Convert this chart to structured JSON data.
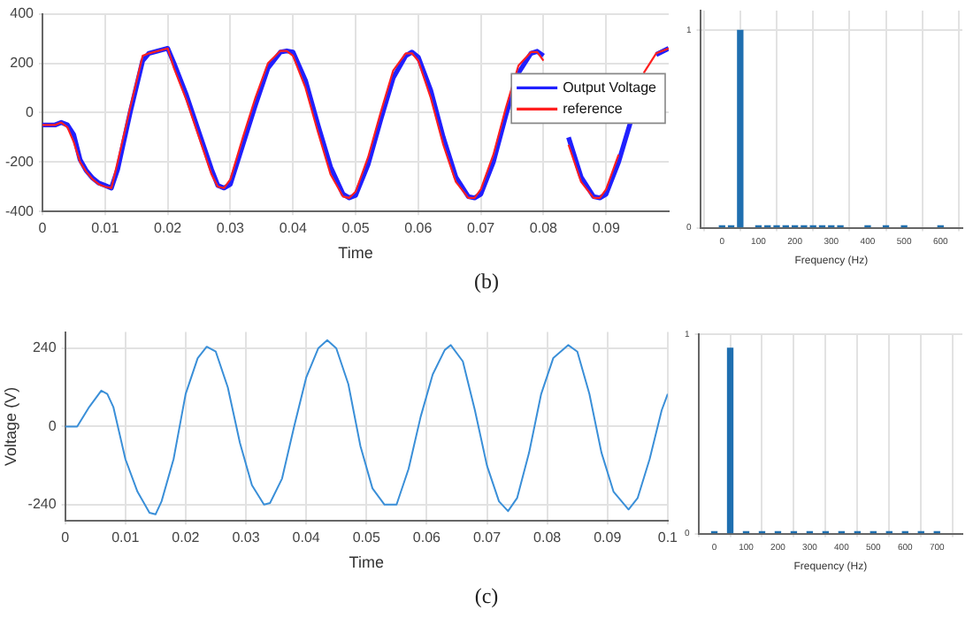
{
  "chart_data": [
    {
      "type": "line",
      "xlabel": "Time",
      "xlim": [
        0,
        0.1
      ],
      "xticks": [
        0,
        0.01,
        0.02,
        0.03,
        0.04,
        0.05,
        0.06,
        0.07,
        0.08,
        0.09
      ],
      "ylim": [
        -400,
        400
      ],
      "yticks": [
        -400,
        -200,
        0,
        200,
        400
      ],
      "grid": true,
      "legend": "right",
      "marker": "none",
      "line_style": "solid",
      "annotations": [
        "(b)"
      ],
      "x": [
        0,
        0.002,
        0.003,
        0.004,
        0.005,
        0.006,
        0.007,
        0.008,
        0.009,
        0.01,
        0.011,
        0.012,
        0.014,
        0.016,
        0.017,
        0.02,
        0.021,
        0.023,
        0.025,
        0.027,
        0.028,
        0.029,
        0.03,
        0.032,
        0.034,
        0.036,
        0.038,
        0.039,
        0.04,
        0.042,
        0.044,
        0.046,
        0.048,
        0.049,
        0.05,
        0.052,
        0.054,
        0.056,
        0.058,
        0.059,
        0.06,
        0.062,
        0.064,
        0.066,
        0.068,
        0.069,
        0.07,
        0.072,
        0.074,
        0.076,
        0.078,
        0.079,
        0.08,
        0.082,
        0.084,
        0.086,
        0.088,
        0.089,
        0.09,
        0.092,
        0.094,
        0.096,
        0.098,
        0.1
      ],
      "series": [
        {
          "name": "Output Voltage",
          "color": "#2020ff",
          "values": [
            -50,
            -50,
            -40,
            -50,
            -90,
            -190,
            -235,
            -265,
            -285,
            -295,
            -305,
            -230,
            0,
            210,
            240,
            260,
            200,
            70,
            -80,
            -230,
            -295,
            -305,
            -290,
            -130,
            30,
            180,
            245,
            250,
            245,
            130,
            -50,
            -220,
            -330,
            -345,
            -335,
            -210,
            -30,
            140,
            230,
            245,
            225,
            90,
            -100,
            -260,
            -340,
            -345,
            -330,
            -200,
            -10,
            160,
            240,
            248,
            230,
            null,
            -100,
            -260,
            -340,
            -345,
            -330,
            -200,
            -30,
            null,
            235,
            260
          ]
        },
        {
          "name": "reference",
          "color": "#ff2020",
          "values": [
            -50,
            -50,
            -40,
            -60,
            -120,
            -200,
            -240,
            -270,
            -290,
            -300,
            -305,
            -200,
            20,
            230,
            240,
            260,
            180,
            50,
            -100,
            -250,
            -300,
            -305,
            -270,
            -100,
            60,
            200,
            250,
            250,
            230,
            100,
            -80,
            -250,
            -340,
            -345,
            -320,
            -180,
            0,
            170,
            240,
            240,
            210,
            60,
            -130,
            -280,
            -345,
            -345,
            -310,
            -170,
            20,
            190,
            245,
            245,
            210,
            null,
            -130,
            -280,
            -345,
            -345,
            -310,
            -170,
            null,
            160,
            240,
            260
          ]
        }
      ]
    },
    {
      "type": "bar",
      "xlabel": "Frequency (Hz)",
      "xlim": [
        -60,
        660
      ],
      "xticks": [
        0,
        100,
        200,
        300,
        400,
        500,
        600
      ],
      "ylim": [
        0,
        1.1
      ],
      "yticks": [
        0,
        1
      ],
      "grid": true,
      "x": [
        0,
        25,
        50,
        100,
        125,
        150,
        175,
        200,
        225,
        250,
        275,
        300,
        325,
        400,
        450,
        500,
        600
      ],
      "series": [
        {
          "color": "#1f6fb0",
          "values": [
            0.01,
            0.01,
            1,
            0.01,
            0.01,
            0.01,
            0.01,
            0.01,
            0.01,
            0.01,
            0.01,
            0.01,
            0.01,
            0.01,
            0.01,
            0.01,
            0.01
          ]
        }
      ]
    },
    {
      "type": "line",
      "xlabel": "Time",
      "ylabel": "Voltage (V)",
      "xlim": [
        0,
        0.1
      ],
      "xticks": [
        0,
        0.01,
        0.02,
        0.03,
        0.04,
        0.05,
        0.06,
        0.07,
        0.08,
        0.09,
        0.1
      ],
      "ylim": [
        -290,
        290
      ],
      "yticks": [
        -240,
        0,
        240
      ],
      "grid": true,
      "marker": "none",
      "line_style": "solid",
      "annotations": [
        "(c)"
      ],
      "x": [
        0,
        0.002,
        0.004,
        0.006,
        0.007,
        0.008,
        0.01,
        0.012,
        0.014,
        0.015,
        0.016,
        0.018,
        0.02,
        0.022,
        0.0235,
        0.025,
        0.027,
        0.029,
        0.031,
        0.033,
        0.034,
        0.036,
        0.038,
        0.04,
        0.042,
        0.0435,
        0.045,
        0.047,
        0.049,
        0.051,
        0.053,
        0.055,
        0.057,
        0.059,
        0.061,
        0.063,
        0.064,
        0.066,
        0.068,
        0.07,
        0.072,
        0.0735,
        0.075,
        0.077,
        0.079,
        0.081,
        0.0835,
        0.085,
        0.087,
        0.089,
        0.091,
        0.0935,
        0.095,
        0.097,
        0.099,
        0.1
      ],
      "series": [
        {
          "color": "#3a8fd8",
          "values": [
            0,
            0,
            60,
            110,
            100,
            60,
            -100,
            -200,
            -265,
            -270,
            -230,
            -100,
            100,
            210,
            245,
            230,
            120,
            -50,
            -180,
            -240,
            -235,
            -160,
            0,
            150,
            240,
            265,
            240,
            130,
            -60,
            -190,
            -240,
            -240,
            -130,
            30,
            160,
            235,
            250,
            200,
            50,
            -120,
            -230,
            -260,
            -220,
            -80,
            100,
            210,
            250,
            230,
            100,
            -80,
            -200,
            -255,
            -220,
            -100,
            50,
            100
          ]
        }
      ]
    },
    {
      "type": "bar",
      "xlabel": "Frequency (Hz)",
      "xlim": [
        -50,
        780
      ],
      "xticks": [
        0,
        100,
        200,
        300,
        400,
        500,
        600,
        700
      ],
      "ylim": [
        0,
        1
      ],
      "yticks": [
        0,
        1
      ],
      "grid": true,
      "x": [
        0,
        50,
        100,
        150,
        200,
        250,
        300,
        350,
        400,
        450,
        500,
        550,
        600,
        650,
        700
      ],
      "series": [
        {
          "color": "#1f6fb0",
          "values": [
            0.01,
            0.93,
            0.01,
            0.01,
            0.01,
            0.01,
            0.01,
            0.01,
            0.01,
            0.01,
            0.01,
            0.01,
            0.01,
            0.01,
            0.01
          ]
        }
      ]
    }
  ]
}
